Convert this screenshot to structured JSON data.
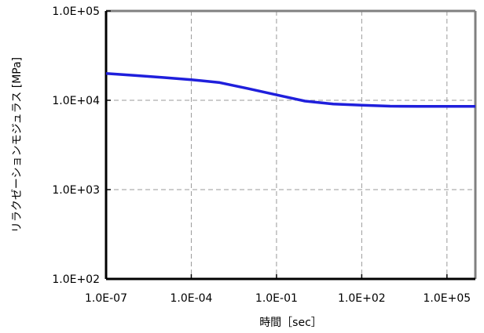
{
  "chart_data": {
    "type": "line",
    "title": "",
    "xlabel": "時間［sec］",
    "ylabel": "リラクゼーションモジュラス [MPa]",
    "x_scale": "log",
    "y_scale": "log",
    "xlim": [
      1e-07,
      1000000.0
    ],
    "ylim": [
      100,
      100000
    ],
    "x_ticks": [
      1e-07,
      0.0001,
      0.1,
      100.0,
      100000.0
    ],
    "x_tick_labels": [
      "1.0E-07",
      "1.0E-04",
      "1.0E-01",
      "1.0E+02",
      "1.0E+05"
    ],
    "y_ticks": [
      100,
      1000,
      10000,
      100000
    ],
    "y_tick_labels": [
      "1.0E+02",
      "1.0E+03",
      "1.0E+04",
      "1.0E+05"
    ],
    "grid": true,
    "legend": "none",
    "series_color": "#1f1fdc",
    "series": [
      {
        "x": [
          1e-07,
          1e-06,
          1e-05,
          0.0001,
          0.001,
          0.01,
          0.1,
          1,
          10,
          100,
          1000,
          10000,
          100000,
          1000000
        ],
        "y": [
          20000,
          19000,
          18000,
          17000,
          15800,
          13500,
          11500,
          9800,
          9100,
          8800,
          8600,
          8550,
          8550,
          8550
        ]
      }
    ]
  }
}
